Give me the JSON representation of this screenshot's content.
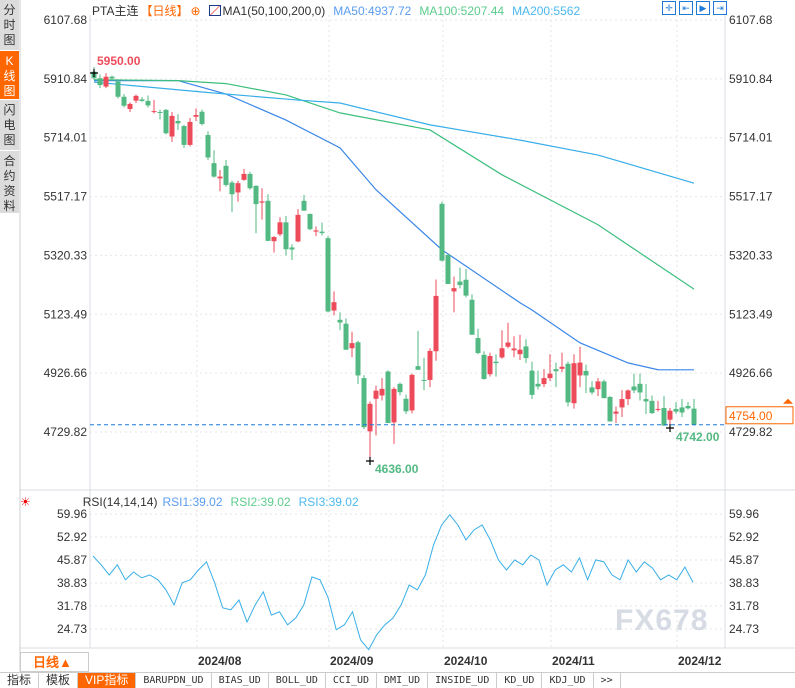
{
  "sidebar": {
    "items": [
      {
        "label": "分时图"
      },
      {
        "label": "K线图"
      },
      {
        "label": "闪电图"
      },
      {
        "label": "合约资料"
      }
    ]
  },
  "header": {
    "symbol": "PTA主连",
    "period": "【日线】",
    "add_icon": "⊕",
    "ma_name": "MA1(50,100,200,0)",
    "ma50": "MA50:4937.72",
    "ma100": "MA100:5207.44",
    "ma200": "MA200:5562",
    "tools": [
      "crosshair-icon",
      "zoom-range-icon",
      "play-icon",
      "go-end-icon"
    ],
    "tool_glyphs": [
      "✛",
      "⇤",
      "▶",
      "⇥"
    ]
  },
  "rsi_header": {
    "name": "RSI(14,14,14)",
    "rsi1": "RSI1:39.02",
    "rsi2": "RSI2:39.02",
    "rsi3": "RSI3:39.02"
  },
  "colors": {
    "up": "#ee4b5a",
    "down": "#52b982",
    "ma50": "#3a86e8",
    "ma100": "#3cbf7c",
    "ma200": "#38aee8",
    "rsi": "#38aee8",
    "accent": "#ff6600"
  },
  "annotations": {
    "high": "5950.00",
    "low": "4636.00",
    "last_low": "4742.00",
    "current": "4754.00"
  },
  "bottom": {
    "period": "日线▲",
    "tabs": [
      "指标",
      "模板",
      "VIP指标",
      "BARUPDN_UD",
      "BIAS_UD",
      "BOLL_UD",
      "CCI_UD",
      "DMI_UD",
      "INSIDE_UD",
      "KD_UD",
      "KDJ_UD",
      ">>"
    ]
  },
  "watermark": "FX678",
  "chart_data": [
    {
      "type": "candlestick",
      "title": "PTA主连 日线",
      "ylim": [
        4729.82,
        6107.68
      ],
      "yticks": [
        "6107.68",
        "5910.84",
        "5714.01",
        "5517.17",
        "5320.33",
        "5123.49",
        "4926.66",
        "4729.82"
      ],
      "xlabels": [
        {
          "label": "2024/08",
          "index": 17
        },
        {
          "label": "2024/09",
          "index": 39
        },
        {
          "label": "2024/10",
          "index": 58
        },
        {
          "label": "2024/11",
          "index": 76
        },
        {
          "label": "2024/12",
          "index": 97
        }
      ],
      "current_price": 4754,
      "ohlc": [
        [
          5935,
          5950,
          5908,
          5913
        ],
        [
          5913,
          5925,
          5880,
          5890
        ],
        [
          5885,
          5930,
          5880,
          5918
        ],
        [
          5918,
          5922,
          5905,
          5912
        ],
        [
          5902,
          5910,
          5845,
          5851
        ],
        [
          5851,
          5860,
          5815,
          5821
        ],
        [
          5810,
          5832,
          5800,
          5827
        ],
        [
          5838,
          5858,
          5830,
          5854
        ],
        [
          5842,
          5850,
          5834,
          5837
        ],
        [
          5837,
          5855,
          5815,
          5822
        ],
        [
          5800,
          5840,
          5795,
          5803
        ],
        [
          5800,
          5808,
          5775,
          5797
        ],
        [
          5807,
          5810,
          5725,
          5729
        ],
        [
          5718,
          5800,
          5700,
          5787
        ],
        [
          5770,
          5793,
          5740,
          5762
        ],
        [
          5753,
          5757,
          5680,
          5690
        ],
        [
          5690,
          5780,
          5685,
          5767
        ],
        [
          5784,
          5812,
          5770,
          5790
        ],
        [
          5801,
          5808,
          5755,
          5760
        ],
        [
          5723,
          5735,
          5640,
          5648
        ],
        [
          5629,
          5672,
          5580,
          5584
        ],
        [
          5578,
          5606,
          5535,
          5584
        ],
        [
          5620,
          5640,
          5550,
          5556
        ],
        [
          5564,
          5570,
          5465,
          5525
        ],
        [
          5531,
          5570,
          5500,
          5562
        ],
        [
          5573,
          5610,
          5570,
          5593
        ],
        [
          5593,
          5600,
          5540,
          5545
        ],
        [
          5553,
          5555,
          5395,
          5492
        ],
        [
          5497,
          5545,
          5440,
          5501
        ],
        [
          5503,
          5525,
          5368,
          5369
        ],
        [
          5368,
          5385,
          5330,
          5382
        ],
        [
          5391,
          5448,
          5385,
          5431
        ],
        [
          5431,
          5452,
          5320,
          5341
        ],
        [
          5347,
          5358,
          5305,
          5340
        ],
        [
          5367,
          5475,
          5365,
          5456
        ],
        [
          5503,
          5523,
          5470,
          5470
        ],
        [
          5459,
          5460,
          5405,
          5408
        ],
        [
          5400,
          5417,
          5385,
          5404
        ],
        [
          5400,
          5430,
          5387,
          5395
        ],
        [
          5378,
          5385,
          5130,
          5133
        ],
        [
          5136,
          5200,
          5120,
          5164
        ],
        [
          5105,
          5130,
          5070,
          5096
        ],
        [
          5092,
          5110,
          5005,
          5005
        ],
        [
          5010,
          5065,
          4980,
          5027
        ],
        [
          5030,
          5035,
          4890,
          4919
        ],
        [
          4910,
          4920,
          4740,
          4746
        ],
        [
          4732,
          4832,
          4636,
          4824
        ],
        [
          4841,
          4885,
          4718,
          4868
        ],
        [
          4852,
          4910,
          4835,
          4874
        ],
        [
          4932,
          4936,
          4760,
          4760
        ],
        [
          4762,
          4880,
          4690,
          4874
        ],
        [
          4891,
          4895,
          4852,
          4863
        ],
        [
          4841,
          4855,
          4790,
          4799
        ],
        [
          4802,
          4925,
          4792,
          4921
        ],
        [
          4950,
          5068,
          4937,
          4938
        ],
        [
          4904,
          4978,
          4870,
          4903
        ],
        [
          4904,
          5010,
          4880,
          5001
        ],
        [
          5000,
          5240,
          4968,
          5185
        ],
        [
          5493,
          5500,
          5300,
          5303
        ],
        [
          5322,
          5325,
          5225,
          5225
        ],
        [
          5200,
          5250,
          5130,
          5211
        ],
        [
          5233,
          5280,
          5210,
          5221
        ],
        [
          5239,
          5275,
          5180,
          5186
        ],
        [
          5172,
          5190,
          5055,
          5055
        ],
        [
          5044,
          5075,
          4990,
          4994
        ],
        [
          4988,
          5000,
          4905,
          4907
        ],
        [
          4923,
          4995,
          4915,
          4984
        ],
        [
          4965,
          4990,
          4915,
          4960
        ],
        [
          4979,
          5070,
          4975,
          5010
        ],
        [
          5015,
          5095,
          5010,
          5029
        ],
        [
          5003,
          5050,
          4980,
          5009
        ],
        [
          4990,
          5055,
          4970,
          5005
        ],
        [
          5016,
          5040,
          4960,
          4977
        ],
        [
          4935,
          4965,
          4840,
          4854
        ],
        [
          4891,
          4935,
          4872,
          4882
        ],
        [
          4890,
          4940,
          4880,
          4910
        ],
        [
          4910,
          4990,
          4900,
          4925
        ],
        [
          4940,
          4962,
          4880,
          4933
        ],
        [
          4941,
          4995,
          4930,
          4948
        ],
        [
          4958,
          4965,
          4815,
          4829
        ],
        [
          4826,
          4990,
          4808,
          4960
        ],
        [
          4919,
          5015,
          4880,
          4962
        ],
        [
          4934,
          4955,
          4860,
          4919
        ],
        [
          4879,
          4900,
          4855,
          4862
        ],
        [
          4873,
          4910,
          4850,
          4899
        ],
        [
          4899,
          4905,
          4843,
          4843
        ],
        [
          4847,
          4850,
          4765,
          4765
        ],
        [
          4791,
          4815,
          4760,
          4798
        ],
        [
          4812,
          4870,
          4780,
          4840
        ],
        [
          4840,
          4872,
          4820,
          4869
        ],
        [
          4882,
          4925,
          4860,
          4869
        ],
        [
          4891,
          4925,
          4835,
          4862
        ],
        [
          4840,
          4890,
          4790,
          4832
        ],
        [
          4834,
          4852,
          4790,
          4793
        ],
        [
          4806,
          4834,
          4798,
          4807
        ],
        [
          4810,
          4850,
          4751,
          4751
        ],
        [
          4771,
          4810,
          4742,
          4801
        ],
        [
          4807,
          4830,
          4790,
          4798
        ],
        [
          4812,
          4840,
          4780,
          4795
        ],
        [
          4817,
          4830,
          4805,
          4809
        ],
        [
          4808,
          4840,
          4751,
          4754
        ]
      ],
      "series": [
        {
          "name": "MA50",
          "points": [
            [
              0,
              5905
            ],
            [
              14,
              5905
            ],
            [
              22,
              5860
            ],
            [
              32,
              5773
            ],
            [
              41,
              5680
            ],
            [
              47,
              5540
            ],
            [
              58,
              5339
            ],
            [
              71,
              5162
            ],
            [
              73,
              5138
            ],
            [
              81,
              5028
            ],
            [
              89,
              4961
            ],
            [
              94,
              4938
            ],
            [
              100,
              4937.72
            ]
          ]
        },
        {
          "name": "MA100",
          "points": [
            [
              0,
              5908
            ],
            [
              14,
              5905
            ],
            [
              22,
              5895
            ],
            [
              32,
              5857
            ],
            [
              41,
              5797
            ],
            [
              56,
              5740
            ],
            [
              68,
              5590
            ],
            [
              84,
              5423
            ],
            [
              100,
              5207.44
            ]
          ]
        },
        {
          "name": "MA200",
          "points": [
            [
              0,
              5900
            ],
            [
              18,
              5867
            ],
            [
              34,
              5840
            ],
            [
              41,
              5830
            ],
            [
              56,
              5757
            ],
            [
              71,
              5706
            ],
            [
              84,
              5656
            ],
            [
              100,
              5562
            ]
          ]
        }
      ]
    },
    {
      "type": "line",
      "title": "RSI(14,14,14)",
      "ylim": [
        24.73,
        59.96
      ],
      "yticks": [
        "59.96",
        "52.92",
        "45.87",
        "38.83",
        "31.78",
        "24.73"
      ],
      "values": [
        47.1,
        44.4,
        41.3,
        44.4,
        39.8,
        42.2,
        40.4,
        41.3,
        39.8,
        36.7,
        32.1,
        38.9,
        39.8,
        42.8,
        45.3,
        38.9,
        31.2,
        30.6,
        33.6,
        26.9,
        32.1,
        36.1,
        29.0,
        30.0,
        26.0,
        28.1,
        32.1,
        40.7,
        39.8,
        34.3,
        24.5,
        26.0,
        30.0,
        21.4,
        18.4,
        23.0,
        26.0,
        28.1,
        32.1,
        38.2,
        36.7,
        41.3,
        50.5,
        56.6,
        59.7,
        56.6,
        52.0,
        55.1,
        56.6,
        52.0,
        45.9,
        42.8,
        45.9,
        44.4,
        47.4,
        45.9,
        38.2,
        42.8,
        44.4,
        42.2,
        46.5,
        39.8,
        45.9,
        45.3,
        41.3,
        39.8,
        45.9,
        42.2,
        45.3,
        43.4,
        39.8,
        41.3,
        39.8,
        43.7,
        39.02
      ]
    }
  ]
}
